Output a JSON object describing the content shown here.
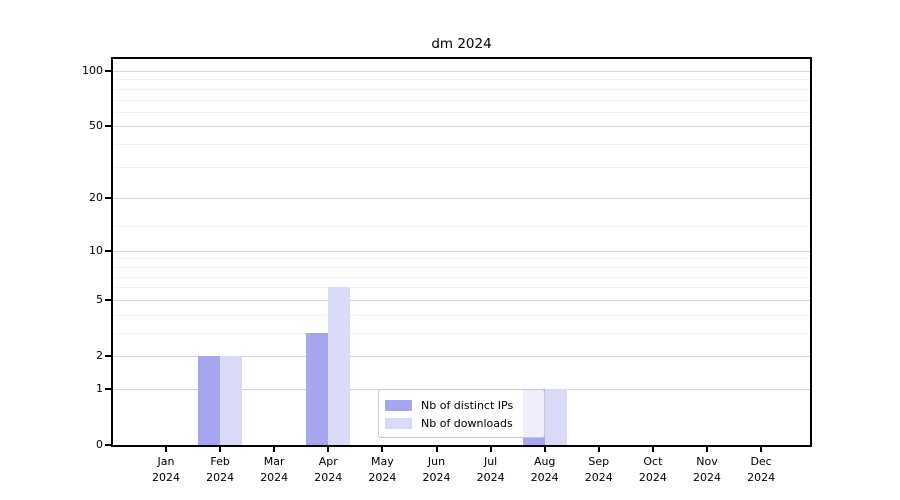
{
  "chart_data": {
    "type": "bar",
    "title": "dm 2024",
    "categories": [
      "Jan",
      "Feb",
      "Mar",
      "Apr",
      "May",
      "Jun",
      "Jul",
      "Aug",
      "Sep",
      "Oct",
      "Nov",
      "Dec"
    ],
    "year_label": "2024",
    "series": [
      {
        "name": "Nb of distinct IPs",
        "color": "#a5a5f0",
        "values": [
          0,
          2,
          0,
          3,
          0,
          0,
          0,
          1,
          0,
          0,
          0,
          0
        ]
      },
      {
        "name": "Nb of downloads",
        "color": "#d9d9f8",
        "values": [
          0,
          2,
          0,
          6,
          0,
          0,
          0,
          1,
          0,
          0,
          0,
          0
        ]
      }
    ],
    "y_axis": {
      "scale": "log10(value+1)",
      "ticks": [
        0,
        1,
        2,
        5,
        10,
        20,
        50,
        100
      ],
      "minor_gridlines": [
        3,
        4,
        6,
        7,
        8,
        9,
        14,
        30,
        40,
        60,
        70,
        80,
        90
      ],
      "ylim": [
        0,
        117
      ]
    },
    "x_axis": {
      "label_line2": "2024"
    },
    "legend": {
      "position": "lower center-right",
      "entries": [
        "Nb of distinct IPs",
        "Nb of downloads"
      ]
    },
    "grid": true,
    "colors": {
      "grid_major": "#d7d7d7",
      "grid_minor": "#efefef",
      "spine": "#000000"
    }
  }
}
